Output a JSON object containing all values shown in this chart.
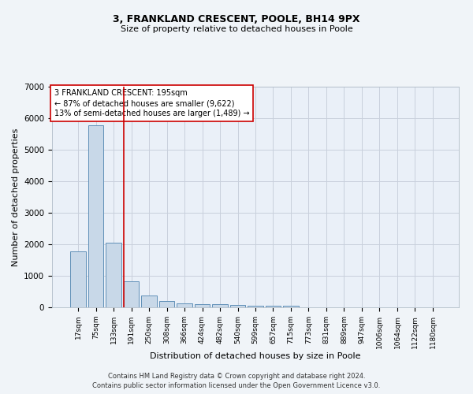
{
  "title1": "3, FRANKLAND CRESCENT, POOLE, BH14 9PX",
  "title2": "Size of property relative to detached houses in Poole",
  "xlabel": "Distribution of detached houses by size in Poole",
  "ylabel": "Number of detached properties",
  "categories": [
    "17sqm",
    "75sqm",
    "133sqm",
    "191sqm",
    "250sqm",
    "308sqm",
    "366sqm",
    "424sqm",
    "482sqm",
    "540sqm",
    "599sqm",
    "657sqm",
    "715sqm",
    "773sqm",
    "831sqm",
    "889sqm",
    "947sqm",
    "1006sqm",
    "1064sqm",
    "1122sqm",
    "1180sqm"
  ],
  "values": [
    1780,
    5780,
    2060,
    820,
    370,
    210,
    120,
    105,
    95,
    75,
    60,
    50,
    40,
    0,
    0,
    0,
    0,
    0,
    0,
    0,
    0
  ],
  "bar_color": "#c8d8e8",
  "bar_edge_color": "#6090b8",
  "annotation_text": "3 FRANKLAND CRESCENT: 195sqm\n← 87% of detached houses are smaller (9,622)\n13% of semi-detached houses are larger (1,489) →",
  "footer1": "Contains HM Land Registry data © Crown copyright and database right 2024.",
  "footer2": "Contains public sector information licensed under the Open Government Licence v3.0.",
  "ylim": [
    0,
    7000
  ],
  "bg_color": "#f0f4f8",
  "plot_bg_color": "#eaf0f8",
  "grid_color": "#c8d0dc",
  "red_line_color": "#cc0000",
  "box_edge_color": "#cc0000",
  "red_line_index": 2.575,
  "title1_fontsize": 9,
  "title2_fontsize": 8,
  "ylabel_fontsize": 8,
  "xlabel_fontsize": 8,
  "tick_fontsize": 6.5,
  "ytick_fontsize": 7.5,
  "ann_fontsize": 7,
  "footer_fontsize": 6
}
